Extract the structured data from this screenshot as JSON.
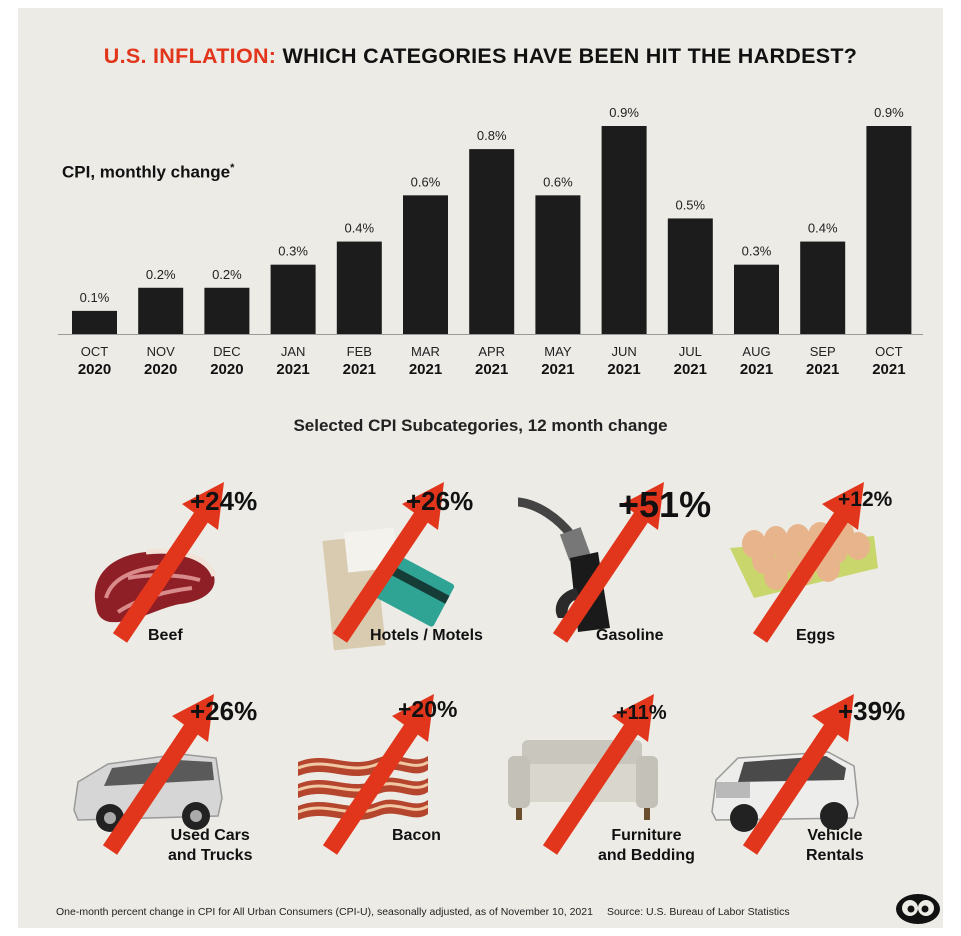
{
  "title": {
    "accent": "U.S. INFLATION:",
    "rest": " WHICH CATEGORIES HAVE BEEN HIT THE HARDEST?"
  },
  "cpi_label": "CPI, monthly change",
  "cpi_label_mark": "*",
  "subcategories_title": "Selected CPI Subcategories, 12 month change",
  "footer": {
    "note": "One-month percent change in CPI for All Urban Consumers (CPI-U), seasonally adjusted, as of November 10, 2021",
    "source": "Source: U.S. Bureau of Labor Statistics"
  },
  "colors": {
    "bar": "#1c1c1c",
    "arrow": "#e2361c",
    "background": "#ecebe6"
  },
  "chart_data": [
    {
      "type": "bar",
      "title": "CPI, monthly change*",
      "categories": [
        {
          "month": "OCT",
          "year": "2020"
        },
        {
          "month": "NOV",
          "year": "2020"
        },
        {
          "month": "DEC",
          "year": "2020"
        },
        {
          "month": "JAN",
          "year": "2021"
        },
        {
          "month": "FEB",
          "year": "2021"
        },
        {
          "month": "MAR",
          "year": "2021"
        },
        {
          "month": "APR",
          "year": "2021"
        },
        {
          "month": "MAY",
          "year": "2021"
        },
        {
          "month": "JUN",
          "year": "2021"
        },
        {
          "month": "JUL",
          "year": "2021"
        },
        {
          "month": "AUG",
          "year": "2021"
        },
        {
          "month": "SEP",
          "year": "2021"
        },
        {
          "month": "OCT",
          "year": "2021"
        }
      ],
      "values": [
        0.1,
        0.2,
        0.2,
        0.3,
        0.4,
        0.6,
        0.8,
        0.6,
        0.9,
        0.5,
        0.3,
        0.4,
        0.9
      ],
      "labels": [
        "0.1%",
        "0.2%",
        "0.2%",
        "0.3%",
        "0.4%",
        "0.6%",
        "0.8%",
        "0.6%",
        "0.9%",
        "0.5%",
        "0.3%",
        "0.4%",
        "0.9%"
      ],
      "ylim": [
        0,
        0.9
      ],
      "grid": false
    },
    {
      "type": "table",
      "title": "Selected CPI Subcategories, 12 month change",
      "items": [
        {
          "name": "Beef",
          "value": 24,
          "label": "+24%",
          "icon": "beef-icon"
        },
        {
          "name": "Hotels / Motels",
          "value": 26,
          "label": "+26%",
          "icon": "hotel-key-card-icon"
        },
        {
          "name": "Gasoline",
          "value": 51,
          "label": "+51%",
          "icon": "fuel-nozzle-icon"
        },
        {
          "name": "Eggs",
          "value": 12,
          "label": "+12%",
          "icon": "egg-carton-icon"
        },
        {
          "name": "Used Cars and Trucks",
          "lines": [
            "Used Cars",
            "and Trucks"
          ],
          "value": 26,
          "label": "+26%",
          "icon": "minivan-icon"
        },
        {
          "name": "Bacon",
          "value": 20,
          "label": "+20%",
          "icon": "bacon-icon"
        },
        {
          "name": "Furniture and Bedding",
          "lines": [
            "Furniture",
            "and Bedding"
          ],
          "value": 11,
          "label": "+11%",
          "icon": "sofa-icon"
        },
        {
          "name": "Vehicle Rentals",
          "lines": [
            "Vehicle",
            "Rentals"
          ],
          "value": 39,
          "label": "+39%",
          "icon": "suv-icon"
        }
      ]
    }
  ]
}
